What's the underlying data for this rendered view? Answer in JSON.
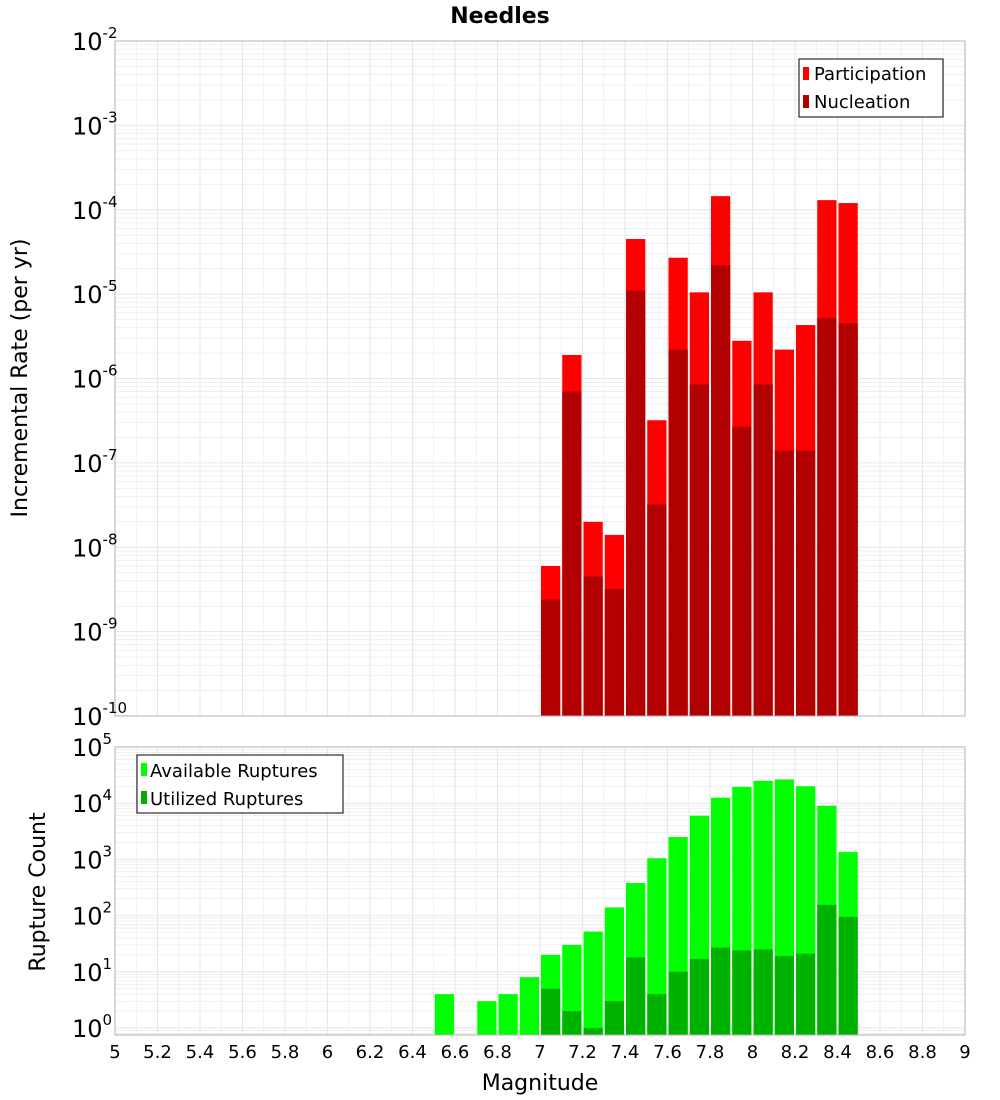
{
  "title": "Needles",
  "colors": {
    "participation": "#ff0000",
    "nucleation": "#b20000",
    "available": "#00ff00",
    "utilized": "#00b200",
    "grid": "#e6e6e6",
    "frame": "#b0b0b0"
  },
  "chart_data": [
    {
      "type": "bar",
      "title": "Needles",
      "xlabel": "",
      "ylabel": "Incremental Rate (per yr)",
      "yscale": "log",
      "ylim": [
        1e-10,
        0.01
      ],
      "xlim": [
        5,
        9
      ],
      "grid": true,
      "legend_position": "top-right",
      "x": [
        7.05,
        7.15,
        7.25,
        7.35,
        7.45,
        7.55,
        7.65,
        7.75,
        7.85,
        7.95,
        8.05,
        8.15,
        8.25,
        8.35,
        8.45
      ],
      "series": [
        {
          "name": "Participation",
          "values": [
            6e-09,
            1.9e-06,
            2e-08,
            1.4e-08,
            4.5e-05,
            3.2e-07,
            2.7e-05,
            1.05e-05,
            0.000145,
            2.8e-06,
            1.05e-05,
            2.2e-06,
            4.3e-06,
            0.00013,
            0.00012
          ]
        },
        {
          "name": "Nucleation",
          "values": [
            2.4e-09,
            7e-07,
            4.5e-09,
            3.2e-09,
            1.1e-05,
            3.2e-08,
            2.2e-06,
            8.5e-07,
            2.2e-05,
            2.7e-07,
            8.5e-07,
            1.4e-07,
            1.4e-07,
            5.2e-06,
            4.5e-06
          ]
        }
      ]
    },
    {
      "type": "bar",
      "xlabel": "Magnitude",
      "ylabel": "Rupture Count",
      "yscale": "log",
      "ylim": [
        0.75,
        100000.0
      ],
      "xlim": [
        5,
        9
      ],
      "grid": true,
      "legend_position": "top-left",
      "x": [
        6.55,
        6.75,
        6.85,
        6.95,
        7.05,
        7.15,
        7.25,
        7.35,
        7.45,
        7.55,
        7.65,
        7.75,
        7.85,
        7.95,
        8.05,
        8.15,
        8.25,
        8.35,
        8.45
      ],
      "series": [
        {
          "name": "Available Ruptures",
          "values": [
            4,
            3,
            4,
            8,
            20,
            30,
            52,
            140,
            380,
            1050,
            2500,
            6000,
            12500,
            19500,
            25000,
            26500,
            20000,
            9000,
            1350
          ]
        },
        {
          "name": "Utilized Ruptures",
          "values": [
            null,
            null,
            null,
            null,
            5,
            2,
            1,
            3,
            18,
            4,
            10,
            17,
            27,
            24,
            25,
            19,
            21,
            155,
            95
          ]
        }
      ]
    }
  ],
  "x_ticks": [
    "5",
    "5.2",
    "5.4",
    "5.6",
    "5.8",
    "6",
    "6.2",
    "6.4",
    "6.6",
    "6.8",
    "7",
    "7.2",
    "7.4",
    "7.6",
    "7.8",
    "8",
    "8.2",
    "8.4",
    "8.6",
    "8.8",
    "9"
  ],
  "top_y_ticks": [
    {
      "base": "10",
      "exp": "-10"
    },
    {
      "base": "10",
      "exp": "-9"
    },
    {
      "base": "10",
      "exp": "-8"
    },
    {
      "base": "10",
      "exp": "-7"
    },
    {
      "base": "10",
      "exp": "-6"
    },
    {
      "base": "10",
      "exp": "-5"
    },
    {
      "base": "10",
      "exp": "-4"
    },
    {
      "base": "10",
      "exp": "-3"
    },
    {
      "base": "10",
      "exp": "-2"
    }
  ],
  "bottom_y_ticks": [
    {
      "base": "10",
      "exp": "0"
    },
    {
      "base": "10",
      "exp": "1"
    },
    {
      "base": "10",
      "exp": "2"
    },
    {
      "base": "10",
      "exp": "3"
    },
    {
      "base": "10",
      "exp": "4"
    },
    {
      "base": "10",
      "exp": "5"
    }
  ]
}
